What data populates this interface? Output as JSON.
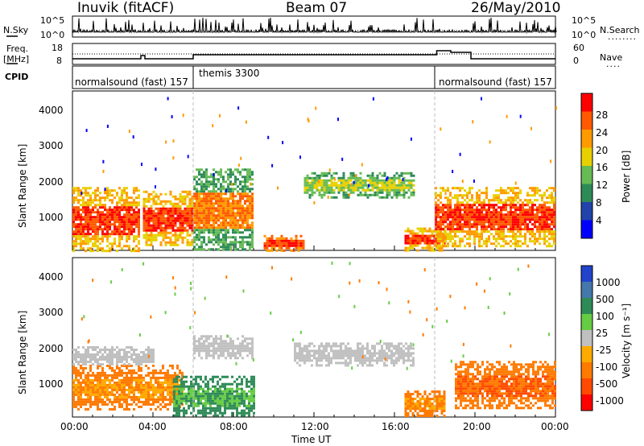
{
  "header": {
    "station": "Inuvik (fitACF)",
    "beam": "Beam 07",
    "date": "26/May/2010"
  },
  "left_labels": {
    "nsky": "N.Sky",
    "freq": "Freq.",
    "freq_unit": "[MHz]",
    "cpid": "CPID"
  },
  "right_labels": {
    "nsearch": "N.Search",
    "nsearch_line": "........",
    "nave": "Nave",
    "nave_line": "...."
  },
  "nsky_axis": {
    "top": "10^5",
    "bottom": "10^0"
  },
  "nsearch_axis": {
    "top": "10^5",
    "bottom": "10^0"
  },
  "freq_axis": {
    "top": "18",
    "bottom": "8"
  },
  "nave_axis": {
    "top": "60",
    "bottom": "0"
  },
  "cpid_segments": [
    {
      "label": "normalsound (fast) 157",
      "start_hour": 0
    },
    {
      "label": "themis 3300",
      "start_hour": 6
    },
    {
      "label": "normalsound (fast) 157",
      "start_hour": 18
    }
  ],
  "range_axis": {
    "label": "Slant Range [km]",
    "ticks": [
      "1000",
      "2000",
      "3000",
      "4000"
    ]
  },
  "time_axis": {
    "label": "Time UT",
    "ticks": [
      "00:00",
      "04:00",
      "08:00",
      "12:00",
      "16:00",
      "20:00",
      "00:00"
    ]
  },
  "power_colorbar": {
    "label": "Power [dB]",
    "ticks": [
      "4",
      "8",
      "12",
      "16",
      "20",
      "24",
      "28"
    ],
    "colors": [
      "#0000ff",
      "#2244aa",
      "#2e8b57",
      "#66bb55",
      "#e8d000",
      "#ff9a00",
      "#ff5a00",
      "#ff0000"
    ]
  },
  "velocity_colorbar": {
    "label": "Velocity [m s⁻¹]",
    "ticks": [
      "1000",
      "500",
      "100",
      "25",
      "-25",
      "-100",
      "-500",
      "-1000"
    ],
    "colors": [
      "#2244cc",
      "#4477aa",
      "#2e8b57",
      "#66cc44",
      "#c0c0c0",
      "#ffaa00",
      "#ff7a00",
      "#ff4a00",
      "#ff0000"
    ]
  },
  "chart_data": [
    {
      "type": "heatmap",
      "title": "Power",
      "xlabel": "Time UT",
      "ylabel": "Slant Range [km]",
      "xlim": [
        0,
        24
      ],
      "ylim": [
        180,
        4500
      ],
      "clabel": "Power [dB]",
      "regions": [
        {
          "t0": 0.0,
          "t1": 3.3,
          "r0": 180,
          "r1": 1900,
          "level": 20,
          "core": 28
        },
        {
          "t0": 3.5,
          "t1": 6.0,
          "r0": 300,
          "r1": 1800,
          "level": 20,
          "core": 28
        },
        {
          "t0": 6.0,
          "t1": 9.0,
          "r0": 200,
          "r1": 2400,
          "level": 12,
          "core": 24
        },
        {
          "t0": 9.5,
          "t1": 11.5,
          "r0": 180,
          "r1": 600,
          "level": 24,
          "core": 28
        },
        {
          "t0": 11.5,
          "t1": 17.0,
          "r0": 1600,
          "r1": 2300,
          "level": 12,
          "core": 16
        },
        {
          "t0": 16.5,
          "t1": 18.5,
          "r0": 180,
          "r1": 800,
          "level": 20,
          "core": 28
        },
        {
          "t0": 18.0,
          "t1": 24.0,
          "r0": 300,
          "r1": 1900,
          "level": 20,
          "core": 28
        }
      ]
    },
    {
      "type": "heatmap",
      "title": "Velocity",
      "xlabel": "Time UT",
      "ylabel": "Slant Range [km]",
      "xlim": [
        0,
        24
      ],
      "ylim": [
        180,
        4500
      ],
      "clabel": "Velocity [m s⁻¹]",
      "regions": [
        {
          "t0": 0.0,
          "t1": 5.5,
          "r0": 400,
          "r1": 1600,
          "level": -300,
          "core": -100
        },
        {
          "t0": 0.0,
          "t1": 4.0,
          "r0": 1600,
          "r1": 2100,
          "level": 0,
          "core": 0
        },
        {
          "t0": 5.0,
          "t1": 9.0,
          "r0": 200,
          "r1": 1300,
          "level": 150,
          "core": 100
        },
        {
          "t0": 6.0,
          "t1": 9.0,
          "r0": 1800,
          "r1": 2400,
          "level": 0,
          "core": 0
        },
        {
          "t0": 11.0,
          "t1": 17.0,
          "r0": 1600,
          "r1": 2200,
          "level": 0,
          "core": 0
        },
        {
          "t0": 16.5,
          "t1": 18.5,
          "r0": 200,
          "r1": 900,
          "level": -300,
          "core": -100
        },
        {
          "t0": 19.0,
          "t1": 24.0,
          "r0": 400,
          "r1": 1700,
          "level": -300,
          "core": -500
        }
      ]
    }
  ]
}
